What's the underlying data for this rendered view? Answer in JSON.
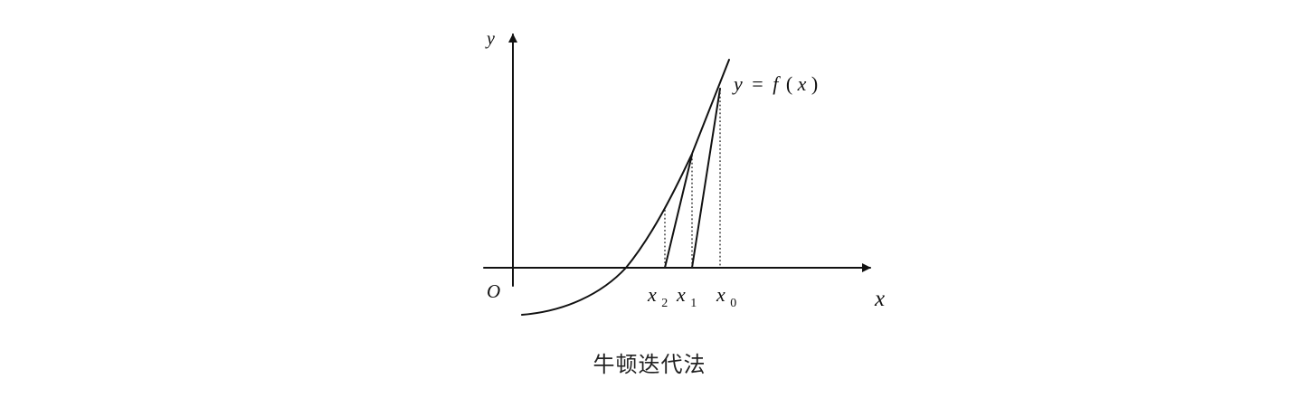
{
  "diagram": {
    "axis_labels": {
      "y": "y",
      "x": "x",
      "origin": "O"
    },
    "curve_label": {
      "lhs": "y",
      "equals": "=",
      "func": "f",
      "open_paren": "(",
      "arg": "x",
      "close_paren": ")"
    },
    "iterates": [
      {
        "base": "x",
        "sub": "2"
      },
      {
        "base": "x",
        "sub": "1"
      },
      {
        "base": "x",
        "sub": "0"
      }
    ]
  },
  "caption": "牛顿迭代法"
}
